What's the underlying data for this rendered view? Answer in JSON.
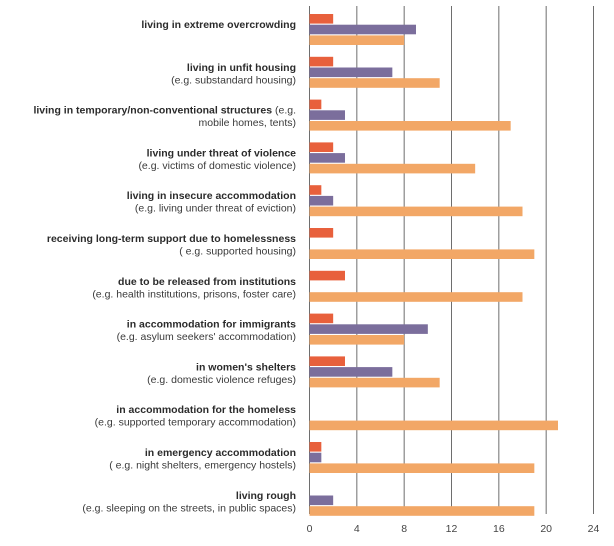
{
  "chart_data": {
    "type": "bar",
    "orientation": "horizontal",
    "title": "",
    "xlabel": "",
    "ylabel": "",
    "xlim": [
      0,
      24
    ],
    "xticks": [
      0,
      4,
      8,
      12,
      16,
      20,
      24
    ],
    "grid": true,
    "legend": "none",
    "categories": [
      {
        "label": "living in extreme overcrowding",
        "sublabel": ""
      },
      {
        "label": "living in unfit housing",
        "sublabel": "(e.g. substandard housing)"
      },
      {
        "label": "living in temporary/non-conventional structures",
        "sublabel_inline": " (e.g.",
        "sublabel": "mobile homes, tents)"
      },
      {
        "label": "living under threat of violence",
        "sublabel": "(e.g. victims of domestic violence)"
      },
      {
        "label": "living in insecure accommodation",
        "sublabel": "(e.g. living under threat of eviction)"
      },
      {
        "label": "receiving long-term support due to homelessness",
        "sublabel": "( e.g. supported housing)"
      },
      {
        "label": "due to be released from institutions",
        "sublabel": "(e.g. health institutions, prisons, foster care)"
      },
      {
        "label": "in accommodation for immigrants",
        "sublabel": "(e.g. asylum seekers' accommodation)"
      },
      {
        "label": "in women's shelters",
        "sublabel": "(e.g. domestic violence refuges)"
      },
      {
        "label": "in accommodation for the homeless",
        "sublabel": "(e.g. supported temporary accommodation)"
      },
      {
        "label": "in emergency accommodation",
        "sublabel": "( e.g. night shelters, emergency hostels)"
      },
      {
        "label": "living rough",
        "sublabel": "(e.g. sleeping on the streets, in public spaces)"
      }
    ],
    "series": [
      {
        "color": "#e8603c",
        "values": [
          2,
          2,
          1,
          2,
          1,
          2,
          3,
          2,
          3,
          0,
          1,
          0
        ]
      },
      {
        "color": "#7b6e9c",
        "values": [
          9,
          7,
          3,
          3,
          2,
          0,
          0,
          10,
          7,
          0,
          1,
          2
        ]
      },
      {
        "color": "#f2a766",
        "values": [
          8,
          11,
          17,
          14,
          18,
          19,
          18,
          8,
          11,
          21,
          19,
          19
        ]
      }
    ]
  }
}
